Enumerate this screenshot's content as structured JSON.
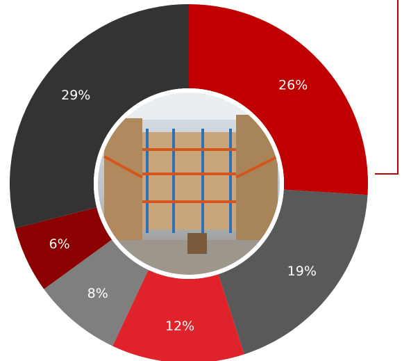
{
  "chart_data": {
    "type": "donut",
    "values": [
      26,
      19,
      12,
      8,
      6,
      29
    ],
    "value_labels": [
      "26%",
      "19%",
      "12%",
      "8%",
      "6%",
      "29%"
    ],
    "colors": [
      "#c00000",
      "#595959",
      "#e0222a",
      "#7f7f7f",
      "#8b0000",
      "#333333"
    ]
  }
}
